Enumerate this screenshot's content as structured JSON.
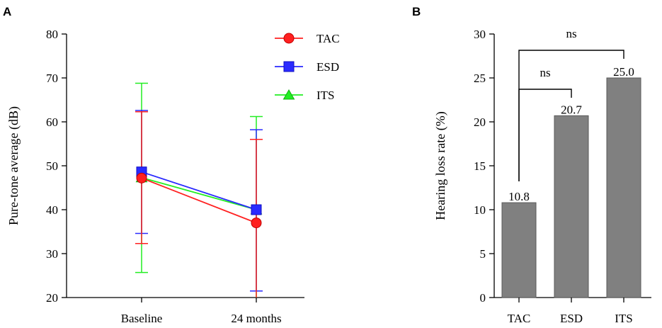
{
  "chart_data": [
    {
      "panel": "A",
      "type": "line",
      "ylabel": "Pure-tone average (dB)",
      "xlabel": "",
      "categories": [
        "Baseline",
        "24 months"
      ],
      "ylim": [
        20,
        80
      ],
      "yticks": [
        20,
        30,
        40,
        50,
        60,
        70,
        80
      ],
      "series": [
        {
          "name": "TAC",
          "color": "#ff2020",
          "marker": "circle",
          "values": [
            47.2,
            37.0
          ],
          "error_low": [
            32.3,
            18.0
          ],
          "error_high": [
            62.3,
            56.0
          ]
        },
        {
          "name": "ESD",
          "color": "#2a2aff",
          "marker": "square",
          "values": [
            48.6,
            40.0
          ],
          "error_low": [
            34.6,
            21.5
          ],
          "error_high": [
            62.6,
            58.2
          ]
        },
        {
          "name": "ITS",
          "color": "#22ee22",
          "marker": "triangle",
          "values": [
            47.3,
            40.0
          ],
          "error_low": [
            25.7,
            18.0
          ],
          "error_high": [
            68.8,
            61.2
          ]
        }
      ],
      "legend": "top-right"
    },
    {
      "panel": "B",
      "type": "bar",
      "ylabel": "Hearing loss rate (%)",
      "xlabel": "",
      "categories": [
        "TAC",
        "ESD",
        "ITS"
      ],
      "values": [
        10.8,
        20.7,
        25.0
      ],
      "value_labels": [
        "10.8",
        "20.7",
        "25.0"
      ],
      "ylim": [
        0,
        30
      ],
      "yticks": [
        0,
        5,
        10,
        15,
        20,
        25,
        30
      ],
      "bar_color": "#808080",
      "annotations": [
        {
          "from": "TAC",
          "to": "ESD",
          "label": "ns"
        },
        {
          "from": "TAC",
          "to": "ITS",
          "label": "ns"
        }
      ]
    }
  ]
}
